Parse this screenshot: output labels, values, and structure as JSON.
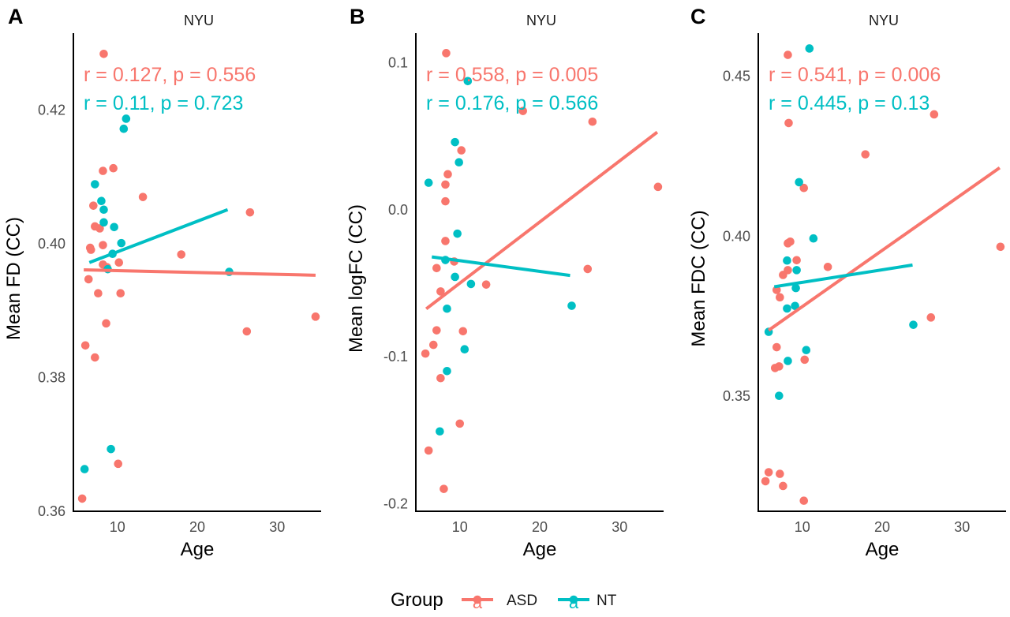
{
  "colors": {
    "ASD": "#F8766D",
    "NT": "#00BFC4",
    "axis": "#000000",
    "tick_text": "#4d4d4d"
  },
  "legend": {
    "title": "Group",
    "key_glyph": "a",
    "items": [
      {
        "label": "ASD",
        "color": "#F8766D"
      },
      {
        "label": "NT",
        "color": "#00BFC4"
      }
    ]
  },
  "chart_data": [
    {
      "type": "scatter",
      "panel": "A",
      "title": "NYU",
      "xlabel": "Age",
      "ylabel": "Mean FD (CC)",
      "xlim": [
        4.5,
        35.5
      ],
      "ylim": [
        0.36,
        0.4315
      ],
      "xticks": [
        10,
        20,
        30
      ],
      "yticks": [
        0.36,
        0.38,
        0.4,
        0.42
      ],
      "ytick_labels": [
        "0.36",
        "0.38",
        "0.40",
        "0.42"
      ],
      "series": [
        {
          "name": "ASD",
          "stat": "r = 0.127, p = 0.556",
          "fit": [
            [
              5.8,
              0.3961
            ],
            [
              34.8,
              0.3953
            ]
          ],
          "points": [
            [
              8.3,
              0.4284
            ],
            [
              9.5,
              0.4113
            ],
            [
              8.2,
              0.4109
            ],
            [
              13.2,
              0.407
            ],
            [
              7.0,
              0.4057
            ],
            [
              26.6,
              0.4047
            ],
            [
              7.2,
              0.4026
            ],
            [
              7.8,
              0.4023
            ],
            [
              8.2,
              0.3998
            ],
            [
              6.6,
              0.3994
            ],
            [
              6.7,
              0.3991
            ],
            [
              18.0,
              0.3984
            ],
            [
              8.2,
              0.3969
            ],
            [
              10.2,
              0.3972
            ],
            [
              8.7,
              0.3965
            ],
            [
              6.4,
              0.3947
            ],
            [
              7.6,
              0.3926
            ],
            [
              10.4,
              0.3926
            ],
            [
              34.8,
              0.3891
            ],
            [
              8.6,
              0.3881
            ],
            [
              26.2,
              0.3869
            ],
            [
              6.0,
              0.3848
            ],
            [
              7.2,
              0.383
            ],
            [
              10.1,
              0.3671
            ],
            [
              5.6,
              0.3619
            ]
          ]
        },
        {
          "name": "NT",
          "stat": "r = 0.11, p = 0.723",
          "fit": [
            [
              6.5,
              0.3972
            ],
            [
              23.8,
              0.4051
            ]
          ],
          "points": [
            [
              11.1,
              0.4187
            ],
            [
              10.8,
              0.4172
            ],
            [
              7.2,
              0.4089
            ],
            [
              8.0,
              0.4064
            ],
            [
              8.3,
              0.4051
            ],
            [
              8.3,
              0.4032
            ],
            [
              9.6,
              0.4025
            ],
            [
              10.5,
              0.4001
            ],
            [
              9.4,
              0.3985
            ],
            [
              8.8,
              0.3962
            ],
            [
              24.0,
              0.3958
            ],
            [
              9.2,
              0.3693
            ],
            [
              5.9,
              0.3663
            ]
          ]
        }
      ]
    },
    {
      "type": "scatter",
      "panel": "B",
      "title": "NYU",
      "xlabel": "Age",
      "ylabel": "Mean logFC (CC)",
      "xlim": [
        4.5,
        35.5
      ],
      "ylim": [
        -0.205,
        0.12
      ],
      "xticks": [
        10,
        20,
        30
      ],
      "yticks": [
        -0.2,
        -0.1,
        0.0,
        0.1
      ],
      "ytick_labels": [
        "-0.2",
        "-0.1",
        "0.0",
        "0.1"
      ],
      "series": [
        {
          "name": "ASD",
          "stat": "r = 0.558, p = 0.005",
          "fit": [
            [
              5.8,
              -0.0674
            ],
            [
              34.7,
              0.0527
            ]
          ],
          "points": [
            [
              8.3,
              0.1064
            ],
            [
              17.9,
              0.0671
            ],
            [
              26.6,
              0.0598
            ],
            [
              10.2,
              0.0403
            ],
            [
              8.5,
              0.0241
            ],
            [
              8.2,
              0.0171
            ],
            [
              34.8,
              0.0155
            ],
            [
              8.2,
              0.0057
            ],
            [
              8.2,
              -0.0213
            ],
            [
              9.3,
              -0.0352
            ],
            [
              7.1,
              -0.0397
            ],
            [
              26.0,
              -0.0403
            ],
            [
              13.3,
              -0.0509
            ],
            [
              7.6,
              -0.0556
            ],
            [
              7.1,
              -0.082
            ],
            [
              10.4,
              -0.0826
            ],
            [
              6.7,
              -0.0919
            ],
            [
              5.7,
              -0.0978
            ],
            [
              7.6,
              -0.1145
            ],
            [
              10.0,
              -0.1454
            ],
            [
              6.1,
              -0.1637
            ],
            [
              8.0,
              -0.1898
            ]
          ]
        },
        {
          "name": "NT",
          "stat": "r = 0.176, p = 0.566",
          "fit": [
            [
              6.5,
              -0.0321
            ],
            [
              23.8,
              -0.0447
            ]
          ],
          "points": [
            [
              11.0,
              0.0874
            ],
            [
              9.4,
              0.0459
            ],
            [
              9.9,
              0.0322
            ],
            [
              6.1,
              0.0183
            ],
            [
              9.7,
              -0.0163
            ],
            [
              8.2,
              -0.0342
            ],
            [
              9.4,
              -0.0457
            ],
            [
              11.4,
              -0.0505
            ],
            [
              24.0,
              -0.0653
            ],
            [
              8.4,
              -0.0673
            ],
            [
              10.6,
              -0.0949
            ],
            [
              8.4,
              -0.1097
            ],
            [
              7.5,
              -0.1507
            ]
          ]
        }
      ]
    },
    {
      "type": "scatter",
      "panel": "C",
      "title": "NYU",
      "xlabel": "Age",
      "ylabel": "Mean FDC (CC)",
      "xlim": [
        4.5,
        35.5
      ],
      "ylim": [
        0.314,
        0.4635
      ],
      "xticks": [
        10,
        20,
        30
      ],
      "yticks": [
        0.35,
        0.4,
        0.45
      ],
      "ytick_labels": [
        "0.35",
        "0.40",
        "0.45"
      ],
      "series": [
        {
          "name": "ASD",
          "stat": "r = 0.541, p = 0.006",
          "fit": [
            [
              5.8,
              0.3706
            ],
            [
              34.7,
              0.4214
            ]
          ],
          "points": [
            [
              8.2,
              0.4567
            ],
            [
              26.5,
              0.4381
            ],
            [
              8.3,
              0.4354
            ],
            [
              17.9,
              0.4256
            ],
            [
              10.2,
              0.4151
            ],
            [
              8.5,
              0.3983
            ],
            [
              8.2,
              0.3978
            ],
            [
              9.3,
              0.3925
            ],
            [
              13.2,
              0.3904
            ],
            [
              8.2,
              0.3894
            ],
            [
              7.6,
              0.3879
            ],
            [
              6.8,
              0.3832
            ],
            [
              7.2,
              0.3809
            ],
            [
              34.8,
              0.3967
            ],
            [
              26.1,
              0.3746
            ],
            [
              6.8,
              0.3653
            ],
            [
              10.3,
              0.3614
            ],
            [
              6.6,
              0.3588
            ],
            [
              7.1,
              0.3593
            ],
            [
              5.8,
              0.3262
            ],
            [
              5.4,
              0.3234
            ],
            [
              7.2,
              0.3257
            ],
            [
              7.6,
              0.3219
            ],
            [
              10.2,
              0.3173
            ]
          ]
        },
        {
          "name": "NT",
          "stat": "r = 0.445, p = 0.13",
          "fit": [
            [
              6.5,
              0.3842
            ],
            [
              23.8,
              0.391
            ]
          ],
          "points": [
            [
              10.9,
              0.4587
            ],
            [
              9.6,
              0.4169
            ],
            [
              11.4,
              0.3993
            ],
            [
              8.1,
              0.3924
            ],
            [
              9.3,
              0.3894
            ],
            [
              9.2,
              0.3838
            ],
            [
              9.1,
              0.3782
            ],
            [
              8.1,
              0.3774
            ],
            [
              5.8,
              0.3701
            ],
            [
              23.9,
              0.3723
            ],
            [
              10.5,
              0.3644
            ],
            [
              8.2,
              0.361
            ],
            [
              7.1,
              0.3501
            ]
          ]
        }
      ]
    }
  ]
}
